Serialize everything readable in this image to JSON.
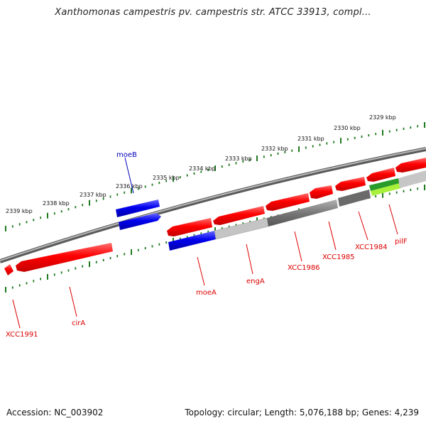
{
  "title": "Xanthomonas campestris pv. campestris str. ATCC 33913, compl...",
  "footer": {
    "accession": "Accession: NC_003902",
    "summary": "Topology: circular; Length: 5,076,188 bp; Genes: 4,239"
  },
  "scale_ticks": [
    "2339 kbp",
    "2338 kbp",
    "2337 kbp",
    "2336 kbp",
    "2335 kbp",
    "2334 kbp",
    "2333 kbp",
    "2332 kbp",
    "2331 kbp",
    "2330 kbp",
    "2329 kbp"
  ],
  "gene_labels": [
    "moeB",
    "XCC1991",
    "cirA",
    "moeA",
    "engA",
    "XCC1986",
    "XCC1985",
    "XCC1984",
    "pilF"
  ],
  "colors": {
    "forward_gene": "#ff0000",
    "moe_gene": "#0000ee",
    "label_red": "#dd0000",
    "label_blue": "#0000bb",
    "tick_green": "#1f7a1f",
    "backbone": "#808080",
    "gc_dark": "#606060",
    "gc_light": "#bbbbbb",
    "gc_green": "#2a9a2a",
    "gc_lime": "#99ee33"
  }
}
